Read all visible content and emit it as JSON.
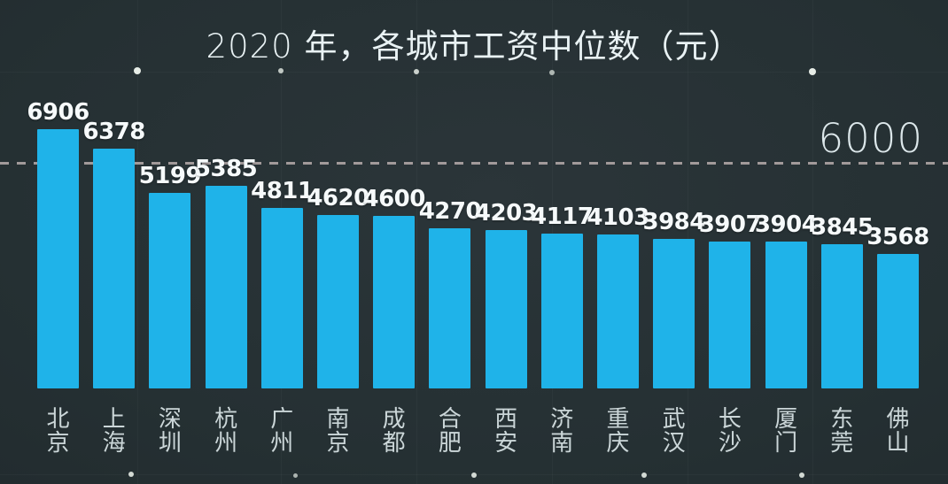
{
  "page": {
    "background_color": "#242d30"
  },
  "chart_data": {
    "type": "bar",
    "orientation": "vertical",
    "title": "2020 年，各城市工资中位数（元）",
    "unit": "元",
    "categories": [
      "北京",
      "上海",
      "深圳",
      "杭州",
      "广州",
      "南京",
      "成都",
      "合肥",
      "西安",
      "济南",
      "重庆",
      "武汉",
      "长沙",
      "厦门",
      "东莞",
      "佛山"
    ],
    "values": [
      6906,
      6378,
      5199,
      5385,
      4811,
      4620,
      4600,
      4270,
      4203,
      4117,
      4103,
      3984,
      3907,
      3904,
      3845,
      3568
    ],
    "gridline": {
      "value": 6000,
      "label": "6000",
      "style": "dashed",
      "color": "#b7acac"
    },
    "ylim": [
      0,
      7400
    ],
    "grid": false,
    "legend": "none",
    "bar_color": "#1fb3e9",
    "value_label_color": "#f6fafb",
    "category_label_color": "#cbd6d8",
    "title_color": "#e9f2f4",
    "gridline_label_color": "#dce7ea"
  }
}
